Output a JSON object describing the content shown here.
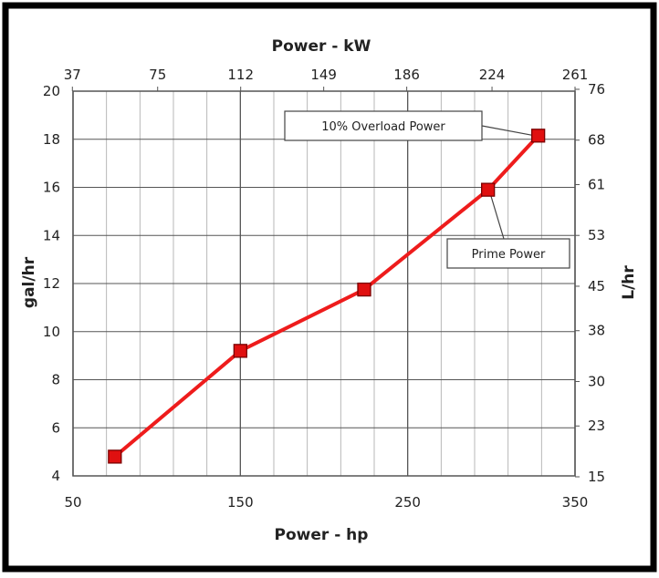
{
  "chart_data": {
    "type": "line",
    "xlabel_bottom": "Power - hp",
    "xlabel_top": "Power - kW",
    "ylabel_left": "gal/hr",
    "ylabel_right": "L/hr",
    "xlim": [
      50,
      350
    ],
    "ylim": [
      4,
      20
    ],
    "x_ticks": [
      "50",
      "150",
      "250",
      "350"
    ],
    "y_ticks": [
      "4",
      "6",
      "8",
      "10",
      "12",
      "14",
      "16",
      "18",
      "20"
    ],
    "top_ticks": [
      "37",
      "75",
      "112",
      "149",
      "186",
      "224",
      "261"
    ],
    "right_ticks": [
      "15",
      "23",
      "30",
      "38",
      "45",
      "53",
      "61",
      "68",
      "76"
    ],
    "grid": true,
    "colors": {
      "series": "#ee1c1c",
      "marker": "#e01010",
      "grid": "#b0b0b0",
      "major_grid": "#555555"
    },
    "series": [
      {
        "x": [
          75,
          150,
          224,
          298,
          328
        ],
        "y": [
          4.8,
          9.2,
          11.75,
          15.9,
          18.15
        ]
      }
    ],
    "annotations": [
      {
        "text": "10% Overload Power"
      },
      {
        "text": "Prime Power"
      }
    ]
  }
}
